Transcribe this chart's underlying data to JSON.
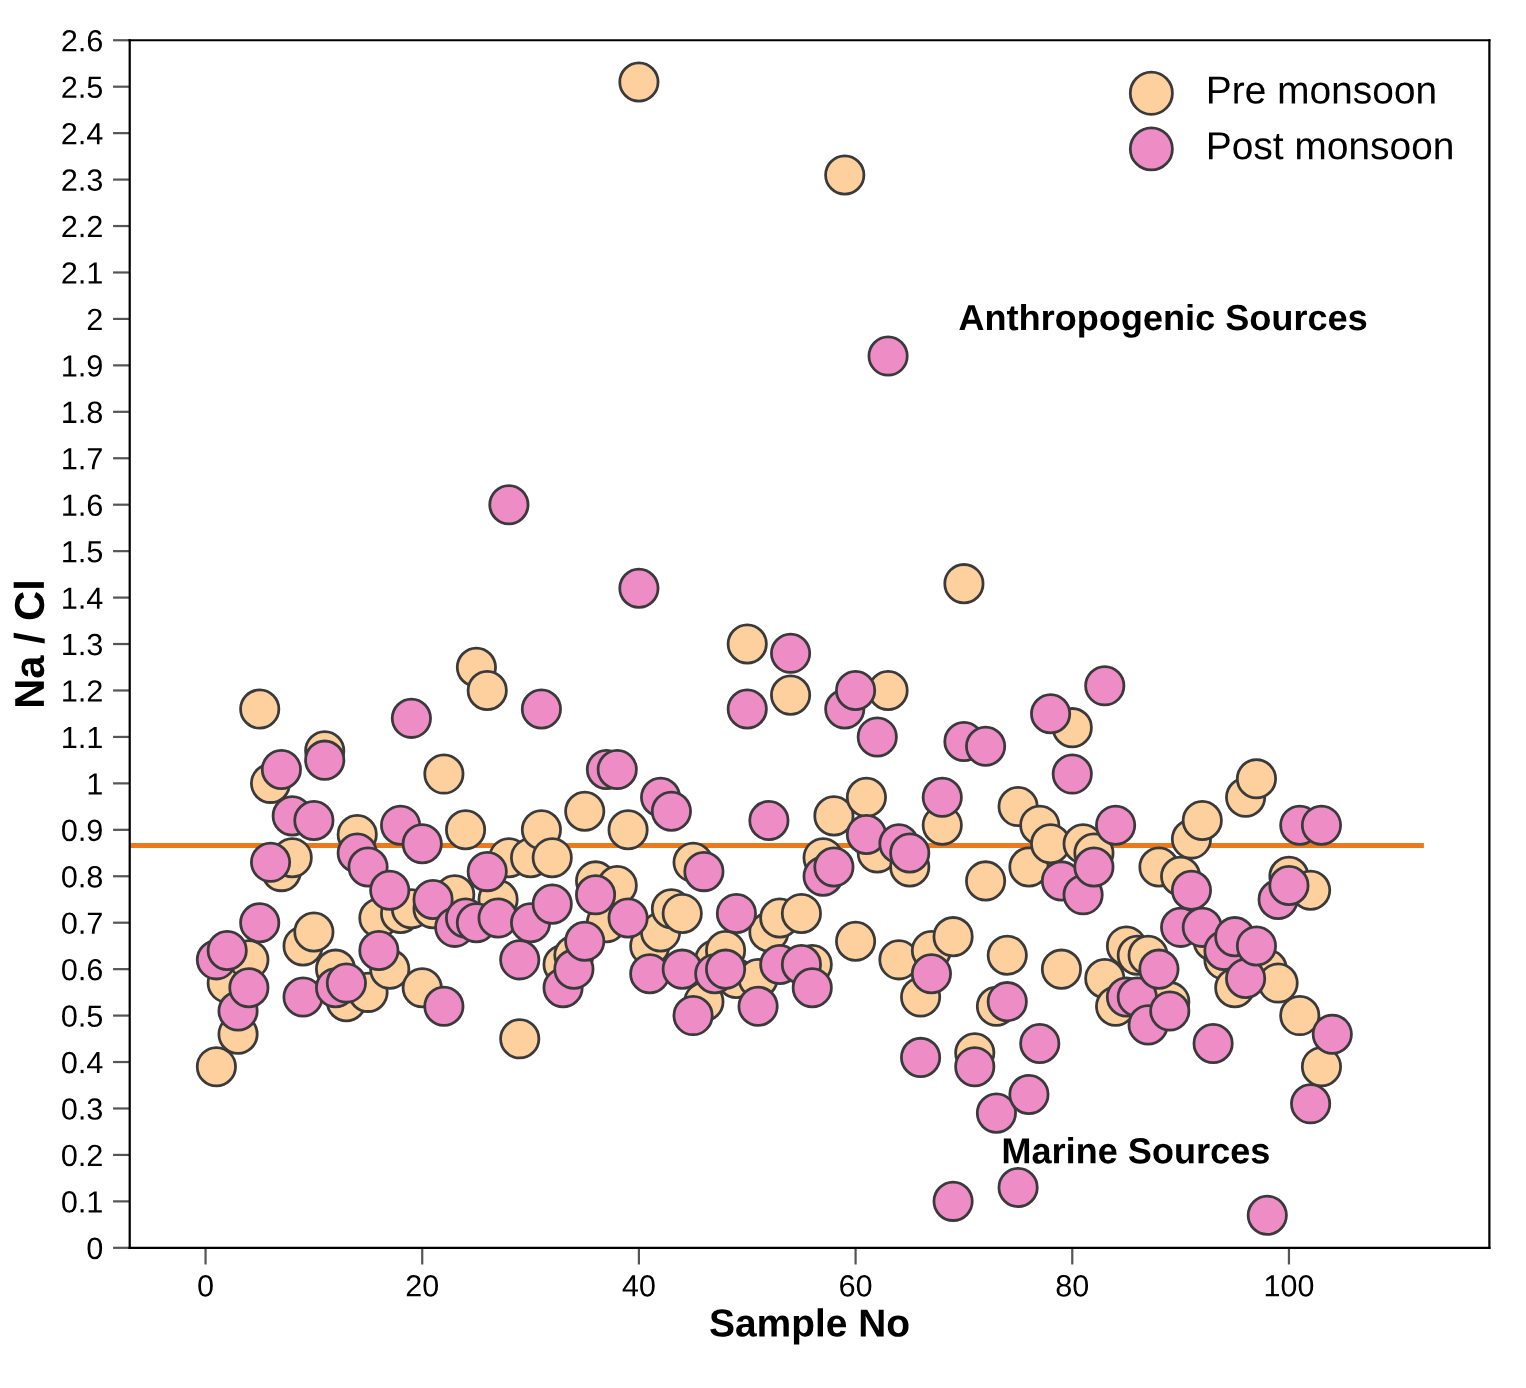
{
  "chart_data": {
    "type": "scatter",
    "xlabel": "Sample No",
    "ylabel": "Na / Cl",
    "x": [
      1,
      2,
      3,
      4,
      5,
      6,
      7,
      8,
      9,
      10,
      11,
      12,
      13,
      14,
      15,
      16,
      17,
      18,
      19,
      20,
      21,
      22,
      23,
      24,
      25,
      26,
      27,
      28,
      29,
      30,
      31,
      32,
      33,
      34,
      35,
      36,
      37,
      38,
      39,
      40,
      41,
      42,
      43,
      44,
      45,
      46,
      47,
      48,
      49,
      50,
      51,
      52,
      53,
      54,
      55,
      56,
      57,
      58,
      59,
      60,
      61,
      62,
      63,
      64,
      65,
      66,
      67,
      68,
      69,
      70,
      71,
      72,
      73,
      74,
      75,
      76,
      77,
      78,
      79,
      80,
      81,
      82,
      83,
      84,
      85,
      86,
      87,
      88,
      89,
      90,
      91,
      92,
      93,
      94,
      95,
      96,
      97,
      98,
      99,
      100,
      101,
      102,
      103,
      104
    ],
    "series": [
      {
        "name": "Pre monsoon",
        "color": "#fdd09e",
        "values": [
          0.39,
          0.57,
          0.46,
          0.62,
          1.16,
          1.0,
          0.81,
          0.84,
          0.65,
          0.68,
          1.07,
          0.6,
          0.53,
          0.89,
          0.55,
          0.71,
          0.6,
          0.72,
          0.73,
          0.56,
          0.73,
          1.02,
          0.76,
          0.9,
          1.25,
          1.2,
          0.75,
          0.84,
          0.45,
          0.84,
          0.9,
          0.84,
          0.61,
          0.63,
          0.94,
          0.79,
          0.7,
          0.78,
          0.9,
          2.51,
          0.65,
          0.68,
          0.73,
          0.72,
          0.83,
          0.53,
          0.62,
          0.64,
          0.58,
          1.3,
          0.58,
          0.68,
          0.71,
          1.19,
          0.72,
          0.61,
          0.84,
          0.93,
          2.31,
          0.66,
          0.97,
          0.85,
          1.2,
          0.62,
          0.82,
          0.54,
          0.64,
          0.91,
          0.67,
          1.43,
          0.42,
          0.79,
          0.52,
          0.63,
          0.95,
          0.82,
          0.91,
          0.87,
          0.6,
          1.12,
          0.87,
          0.85,
          0.58,
          0.52,
          0.65,
          0.63,
          0.63,
          0.82,
          0.53,
          0.8,
          0.88,
          0.92,
          0.66,
          0.62,
          0.56,
          0.97,
          1.01,
          0.6,
          0.57,
          0.8,
          0.5,
          0.77,
          0.39,
          null
        ]
      },
      {
        "name": "Post monsoon",
        "color": "#ee8cc6",
        "values": [
          0.62,
          0.64,
          0.51,
          0.56,
          0.7,
          0.83,
          1.03,
          0.93,
          0.54,
          0.92,
          1.05,
          0.56,
          0.57,
          0.85,
          0.82,
          0.64,
          0.77,
          0.91,
          1.14,
          0.87,
          0.75,
          0.52,
          0.69,
          0.71,
          0.7,
          0.81,
          0.71,
          1.6,
          0.62,
          0.7,
          1.16,
          0.74,
          0.56,
          0.6,
          0.66,
          0.76,
          1.03,
          1.03,
          0.71,
          1.42,
          0.59,
          0.97,
          0.94,
          0.6,
          0.5,
          0.81,
          0.59,
          0.6,
          0.72,
          1.16,
          0.52,
          0.92,
          0.61,
          1.28,
          0.61,
          0.56,
          0.8,
          0.82,
          1.16,
          1.2,
          0.89,
          1.1,
          1.92,
          0.87,
          0.85,
          0.41,
          0.59,
          0.97,
          0.1,
          1.09,
          0.39,
          1.08,
          0.29,
          0.53,
          0.13,
          0.33,
          0.44,
          1.15,
          0.79,
          1.02,
          0.76,
          0.82,
          1.21,
          0.91,
          0.54,
          0.54,
          0.48,
          0.6,
          0.51,
          0.69,
          0.77,
          0.69,
          0.44,
          0.64,
          0.67,
          0.58,
          0.65,
          0.07,
          0.75,
          0.78,
          0.91,
          0.31,
          0.91,
          0.46
        ]
      }
    ],
    "xlim": [
      -7,
      118.5
    ],
    "xticks": [
      0,
      20,
      40,
      60,
      80,
      100
    ],
    "ylim": [
      0,
      2.6
    ],
    "yticks": [
      0,
      0.1,
      0.2,
      0.3,
      0.4,
      0.5,
      0.6,
      0.7,
      0.8,
      0.9,
      1,
      1.1,
      1.2,
      1.3,
      1.4,
      1.5,
      1.6,
      1.7,
      1.8,
      1.9,
      2,
      2.1,
      2.2,
      2.3,
      2.4,
      2.5,
      2.6
    ],
    "ref_lines": [
      {
        "axis": "y",
        "value": 0.866,
        "color": "#ec7a1c"
      }
    ],
    "annotations": [
      "Anthropogenic Sources",
      "Marine Sources"
    ],
    "marker": "circle",
    "legend": "top right",
    "grid": false
  }
}
